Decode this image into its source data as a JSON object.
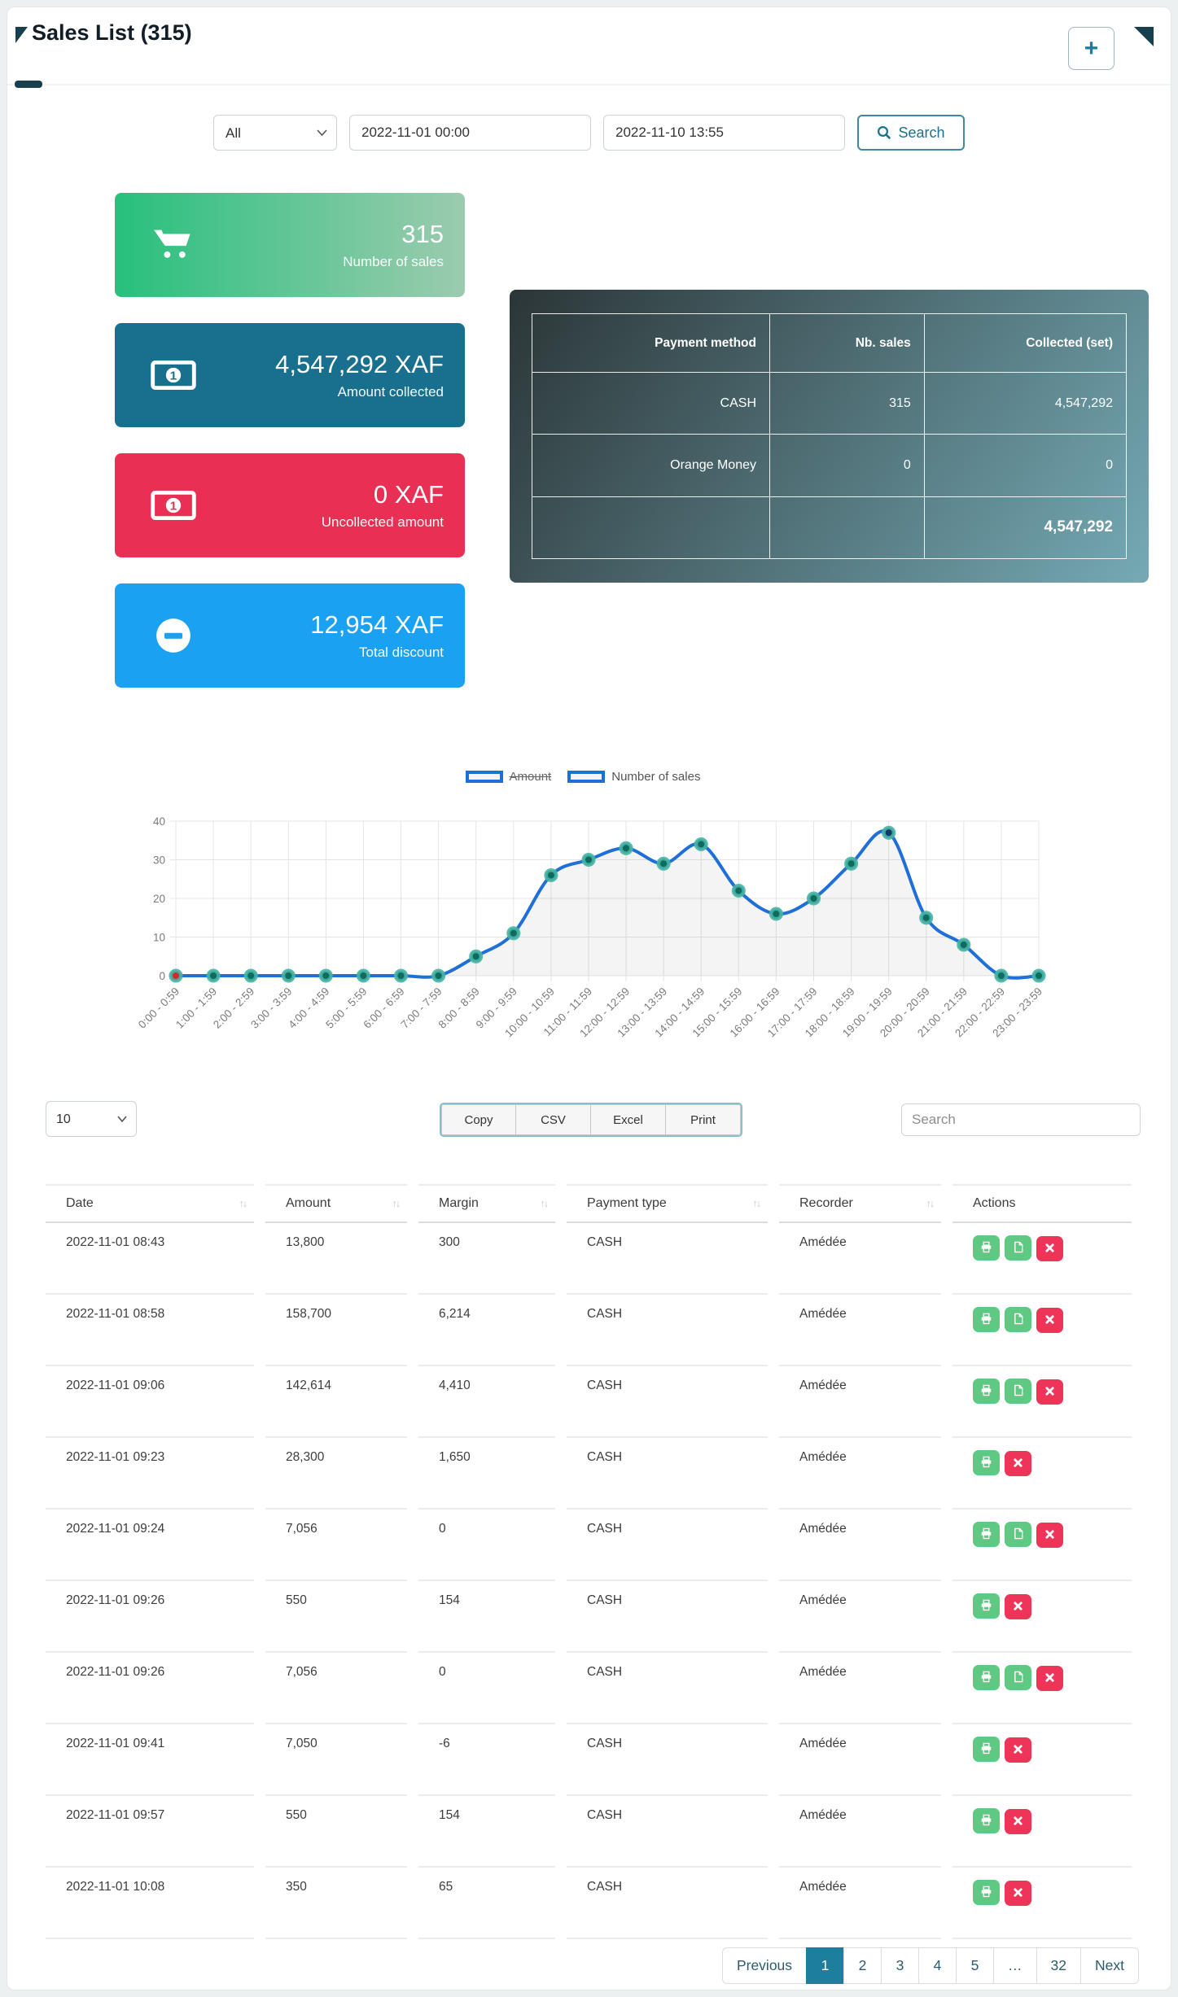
{
  "header": {
    "title": "Sales List (315)",
    "add_button_label": "+"
  },
  "filters": {
    "type_select_value": "All",
    "date_from": "2022-11-01 00:00",
    "date_to": "2022-11-10 13:55",
    "search_button_label": "Search"
  },
  "stat_cards": [
    {
      "icon": "cart-icon",
      "value": "315",
      "label": "Number of sales",
      "color": "#27c07d"
    },
    {
      "icon": "money-bill-icon",
      "value": "4,547,292 XAF",
      "label": "Amount collected",
      "color": "#19708e"
    },
    {
      "icon": "money-bill-icon",
      "value": "0 XAF",
      "label": "Uncollected amount",
      "color": "#e93054"
    },
    {
      "icon": "minus-circle-icon",
      "value": "12,954 XAF",
      "label": "Total discount",
      "color": "#1ba1f2"
    }
  ],
  "payment_table": {
    "headers": [
      "Payment method",
      "Nb. sales",
      "Collected (set)"
    ],
    "rows": [
      [
        "CASH",
        "315",
        "4,547,292"
      ],
      [
        "Orange Money",
        "0",
        "0"
      ]
    ],
    "total": "4,547,292"
  },
  "chart_data": {
    "type": "line",
    "x": [
      "0:00 - 0:59",
      "1:00 - 1:59",
      "2:00 - 2:59",
      "3:00 - 3:59",
      "4:00 - 4:59",
      "5:00 - 5:59",
      "6:00 - 6:59",
      "7:00 - 7:59",
      "8:00 - 8:59",
      "9:00 - 9:59",
      "10:00 - 10:59",
      "11:00 - 11:59",
      "12:00 - 12:59",
      "13:00 - 13:59",
      "14:00 - 14:59",
      "15:00 - 15:59",
      "16:00 - 16:59",
      "17:00 - 17:59",
      "18:00 - 18:59",
      "19:00 - 19:59",
      "20:00 - 20:59",
      "21:00 - 21:59",
      "22:00 - 22:59",
      "23:00 - 23:59"
    ],
    "series": [
      {
        "name": "Amount",
        "hidden": true,
        "values": []
      },
      {
        "name": "Number of sales",
        "hidden": false,
        "values": [
          0,
          0,
          0,
          0,
          0,
          0,
          0,
          0,
          5,
          11,
          26,
          30,
          33,
          29,
          34,
          22,
          16,
          20,
          29,
          37,
          15,
          8,
          0,
          0
        ]
      }
    ],
    "ylim": [
      0,
      40
    ],
    "yticks": [
      0,
      10,
      20,
      30,
      40
    ],
    "grid": true,
    "legend_position": "top",
    "line_color": "#1e6fd8",
    "area_fill": "rgba(0,0,0,0.045)",
    "point_ring_color": "rgba(70,180,165,0.9)",
    "point_fill": "#0e6b5e",
    "point_fill_overrides": {
      "0": "#cf2b2b",
      "19": "#14386b"
    }
  },
  "datatable": {
    "page_size": "10",
    "export_buttons": [
      "Copy",
      "CSV",
      "Excel",
      "Print"
    ],
    "search_placeholder": "Search",
    "columns": [
      {
        "label": "Date",
        "sortable": true
      },
      {
        "label": "Amount",
        "sortable": true
      },
      {
        "label": "Margin",
        "sortable": true
      },
      {
        "label": "Payment type",
        "sortable": true
      },
      {
        "label": "Recorder",
        "sortable": true
      },
      {
        "label": "Actions",
        "sortable": false
      }
    ],
    "rows": [
      {
        "date": "2022-11-01 08:43",
        "amount": "13,800",
        "margin": "300",
        "payment_type": "CASH",
        "recorder": "Amédée",
        "actions": [
          "print",
          "file",
          "delete"
        ]
      },
      {
        "date": "2022-11-01 08:58",
        "amount": "158,700",
        "margin": "6,214",
        "payment_type": "CASH",
        "recorder": "Amédée",
        "actions": [
          "print",
          "file",
          "delete"
        ]
      },
      {
        "date": "2022-11-01 09:06",
        "amount": "142,614",
        "margin": "4,410",
        "payment_type": "CASH",
        "recorder": "Amédée",
        "actions": [
          "print",
          "file",
          "delete"
        ]
      },
      {
        "date": "2022-11-01 09:23",
        "amount": "28,300",
        "margin": "1,650",
        "payment_type": "CASH",
        "recorder": "Amédée",
        "actions": [
          "print",
          "delete"
        ]
      },
      {
        "date": "2022-11-01 09:24",
        "amount": "7,056",
        "margin": "0",
        "payment_type": "CASH",
        "recorder": "Amédée",
        "actions": [
          "print",
          "file",
          "delete"
        ]
      },
      {
        "date": "2022-11-01 09:26",
        "amount": "550",
        "margin": "154",
        "payment_type": "CASH",
        "recorder": "Amédée",
        "actions": [
          "print",
          "delete"
        ]
      },
      {
        "date": "2022-11-01 09:26",
        "amount": "7,056",
        "margin": "0",
        "payment_type": "CASH",
        "recorder": "Amédée",
        "actions": [
          "print",
          "file",
          "delete"
        ]
      },
      {
        "date": "2022-11-01 09:41",
        "amount": "7,050",
        "margin": "-6",
        "payment_type": "CASH",
        "recorder": "Amédée",
        "actions": [
          "print",
          "delete"
        ]
      },
      {
        "date": "2022-11-01 09:57",
        "amount": "550",
        "margin": "154",
        "payment_type": "CASH",
        "recorder": "Amédée",
        "actions": [
          "print",
          "delete"
        ]
      },
      {
        "date": "2022-11-01 10:08",
        "amount": "350",
        "margin": "65",
        "payment_type": "CASH",
        "recorder": "Amédée",
        "actions": [
          "print",
          "delete"
        ]
      }
    ]
  },
  "pagination": {
    "previous": "Previous",
    "pages": [
      "1",
      "2",
      "3",
      "4",
      "5",
      "…",
      "32"
    ],
    "active": "1",
    "next": "Next"
  }
}
